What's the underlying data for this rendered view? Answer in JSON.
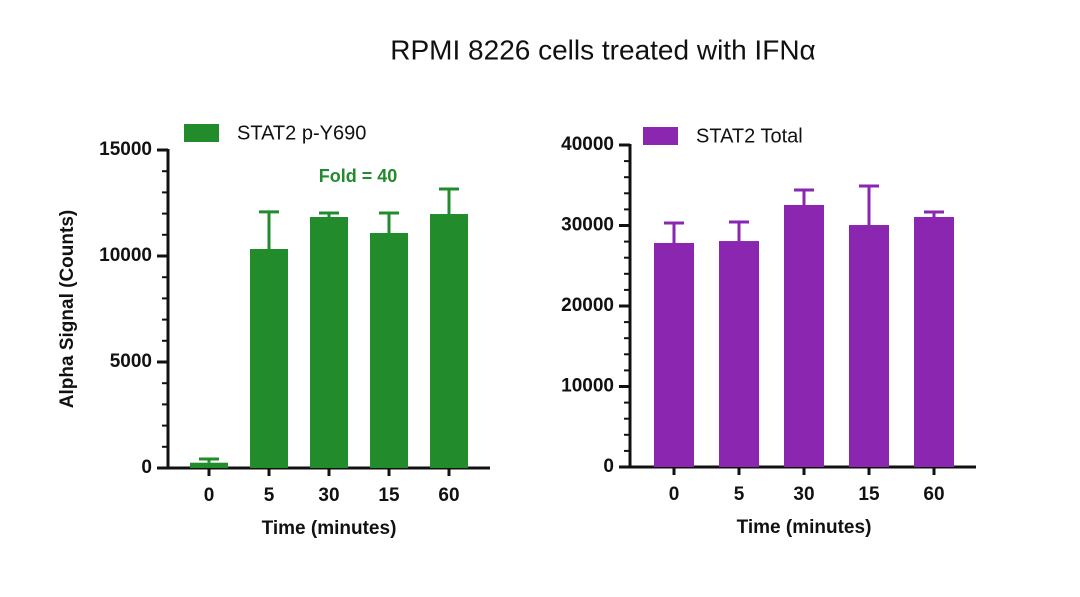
{
  "title": "RPMI 8226 cells treated with IFNα",
  "chart_data": [
    {
      "type": "bar",
      "xlabel": "Time (minutes)",
      "ylabel": "Alpha Signal (Counts)",
      "annotation": "Fold = 40",
      "categories": [
        "0",
        "5",
        "30",
        "15",
        "60"
      ],
      "series": [
        {
          "name": "STAT2 p-Y690",
          "color": "#228b2b",
          "values": [
            250,
            10330,
            11840,
            11085,
            11980
          ],
          "errors": [
            175,
            1750,
            190,
            945,
            1180
          ]
        }
      ],
      "ylim": [
        0,
        15000
      ],
      "yticks": [
        0,
        5000,
        10000,
        15000
      ],
      "minor_tick_step": 1000
    },
    {
      "type": "bar",
      "xlabel": "Time (minutes)",
      "categories": [
        "0",
        "5",
        "30",
        "15",
        "60"
      ],
      "series": [
        {
          "name": "STAT2 Total",
          "color": "#8a26b0",
          "values": [
            27830,
            28070,
            32550,
            30060,
            31060
          ],
          "errors": [
            2480,
            2360,
            1860,
            4850,
            620
          ]
        }
      ],
      "ylim": [
        0,
        40000
      ],
      "yticks": [
        0,
        10000,
        20000,
        30000,
        40000
      ],
      "minor_tick_step": 2000
    }
  ]
}
